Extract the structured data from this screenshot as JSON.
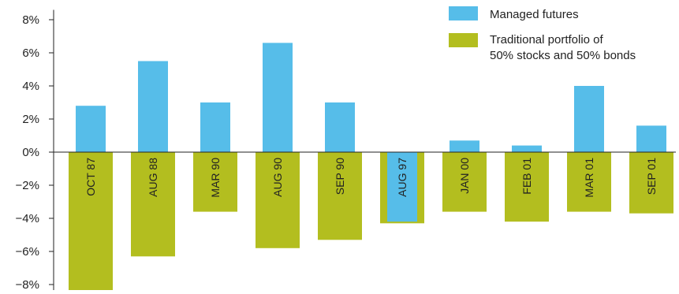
{
  "chart_data": {
    "type": "bar",
    "title": "",
    "xlabel": "",
    "ylabel": "",
    "categories": [
      "OCT 87",
      "AUG 88",
      "MAR 90",
      "AUG 90",
      "SEP 90",
      "AUG 97",
      "JAN 00",
      "FEB 01",
      "MAR 01",
      "SEP 01"
    ],
    "series": [
      {
        "name": "Managed futures",
        "color": "#56bde9",
        "values": [
          2.8,
          5.5,
          3.0,
          6.6,
          3.0,
          -4.2,
          0.7,
          0.4,
          4.0,
          1.6
        ]
      },
      {
        "name": "Traditional portfolio of 50% stocks and 50% bonds",
        "color": "#b3be1f",
        "values": [
          -8.4,
          -6.3,
          -3.6,
          -5.8,
          -5.3,
          -4.3,
          -3.6,
          -4.2,
          -3.6,
          -3.7
        ]
      }
    ],
    "yticks": [
      "8%",
      "6%",
      "4%",
      "2%",
      "0%",
      "−2%",
      "−4%",
      "−6%",
      "−8%"
    ],
    "ylim": [
      -8.5,
      8.5
    ],
    "legend": {
      "placement": "top-right",
      "entries": [
        {
          "label": "Managed futures"
        },
        {
          "label_line1": "Traditional portfolio of",
          "label_line2": "50% stocks and 50% bonds"
        }
      ]
    },
    "grid": false
  }
}
